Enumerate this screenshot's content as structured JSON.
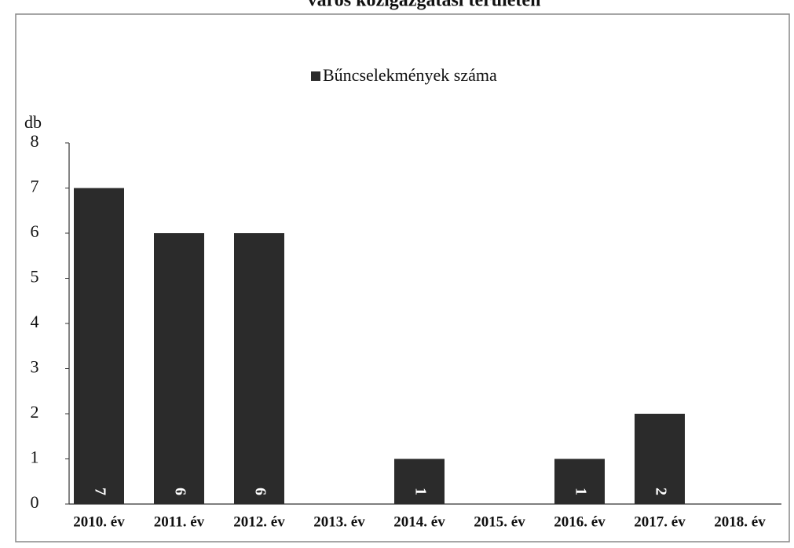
{
  "chart_data": {
    "type": "bar",
    "title": "város közigazgatási területén",
    "y_label": "db",
    "categories": [
      "2010. év",
      "2011. év",
      "2012. év",
      "2013. év",
      "2014. év",
      "2015. év",
      "2016. év",
      "2017. év",
      "2018. év"
    ],
    "series": [
      {
        "name": "Bűncselekmények száma",
        "color": "#2b2b2b",
        "values": [
          7,
          6,
          6,
          null,
          1,
          null,
          1,
          2,
          null
        ]
      }
    ],
    "ylim": [
      0,
      8
    ],
    "yticks": [
      0,
      1,
      2,
      3,
      4,
      5,
      6,
      7,
      8
    ],
    "grid": false
  }
}
